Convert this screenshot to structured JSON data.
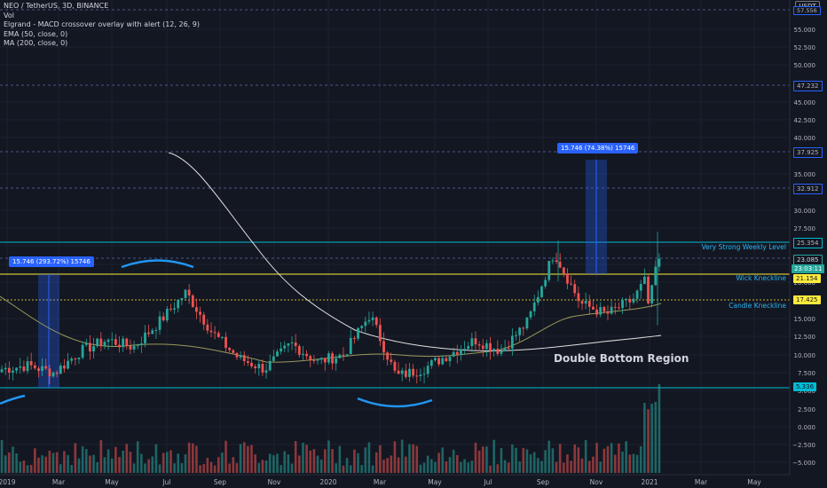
{
  "legend": {
    "symbol": "NEO / TetherUS, 3D, BINANCE",
    "vol": "Vol",
    "macd": "Elgrand - MACD crossover overlay with alert (12, 26, 9)",
    "ema": "EMA (50, close, 0)",
    "ma": "MA (200, close, 0)"
  },
  "currency": "USDT",
  "colors": {
    "background": "#131722",
    "up": "#26a69a",
    "down": "#ef5350",
    "cyan_level": "#00bcd4",
    "yellow_level": "#ffeb3b",
    "measure": "#2962ff",
    "axis_text": "#b2b5be"
  },
  "annotations": {
    "very_strong": "Very Strong Weekly Level",
    "wick_neckline": "Wick Kneckline",
    "candle_neckline": "Candle Kneckline",
    "double_bottom": "Double Bottom Region",
    "measure_left": "15.746 (293.72%) 15746",
    "measure_right": "15.746 (74.38%) 15746"
  },
  "price_tags": {
    "top_dashed": "57.556",
    "p47": "47.232",
    "p37": "37.925",
    "p32": "32.912",
    "p25": "25.354",
    "p23": "23.085",
    "timer": "23:03:11",
    "p21": "21.154",
    "p17": "17.425",
    "p5": "5.336"
  },
  "chart_data": {
    "type": "candlestick",
    "y_ticks": [
      "55.000",
      "52.500",
      "50.000",
      "45.000",
      "42.500",
      "40.000",
      "35.000",
      "30.000",
      "27.500",
      "25.000",
      "22.500",
      "20.000",
      "15.000",
      "12.500",
      "10.000",
      "7.500",
      "5.000",
      "2.500",
      "0.000",
      "−2.500",
      "−5.000"
    ],
    "y_tick_values": [
      55,
      52.5,
      50,
      45,
      42.5,
      40,
      35,
      30,
      27.5,
      25,
      22.5,
      20,
      15,
      12.5,
      10,
      7.5,
      5,
      2.5,
      0,
      -2.5,
      -5
    ],
    "x_ticks": [
      "2019",
      "Mar",
      "May",
      "Jul",
      "Sep",
      "Nov",
      "2020",
      "Mar",
      "May",
      "Jul",
      "Sep",
      "Nov",
      "2021",
      "Mar",
      "May"
    ],
    "levels": {
      "very_strong": 25.354,
      "wick_neckline": 21.154,
      "candle_neckline": 17.425,
      "support": 5.336,
      "dashed": [
        57.556,
        47.232,
        37.925,
        32.912,
        23.085
      ]
    },
    "price_anchors": [
      {
        "x": "2018-11",
        "close": 8.0
      },
      {
        "x": "2019-01",
        "close": 8.5
      },
      {
        "x": "2019-02",
        "close": 7.5
      },
      {
        "x": "2019-03",
        "close": 10.5
      },
      {
        "x": "2019-04",
        "close": 12.0
      },
      {
        "x": "2019-05",
        "close": 11.0
      },
      {
        "x": "2019-06",
        "close": 14.5
      },
      {
        "x": "2019-07",
        "close": 18.5
      },
      {
        "x": "2019-08",
        "close": 13.0
      },
      {
        "x": "2019-09",
        "close": 9.5
      },
      {
        "x": "2019-10",
        "close": 8.0
      },
      {
        "x": "2019-11",
        "close": 11.5
      },
      {
        "x": "2019-12",
        "close": 9.0
      },
      {
        "x": "2020-01",
        "close": 10.0
      },
      {
        "x": "2020-02",
        "close": 15.5
      },
      {
        "x": "2020-03",
        "close": 7.0
      },
      {
        "x": "2020-04",
        "close": 8.0
      },
      {
        "x": "2020-05",
        "close": 10.0
      },
      {
        "x": "2020-06",
        "close": 12.0
      },
      {
        "x": "2020-07",
        "close": 10.5
      },
      {
        "x": "2020-08",
        "close": 14.5
      },
      {
        "x": "2020-09",
        "close": 24.0
      },
      {
        "x": "2020-10",
        "close": 17.0
      },
      {
        "x": "2020-11",
        "close": 15.5
      },
      {
        "x": "2020-12",
        "close": 17.5
      },
      {
        "x": "2021-01",
        "close": 23.1
      }
    ]
  }
}
